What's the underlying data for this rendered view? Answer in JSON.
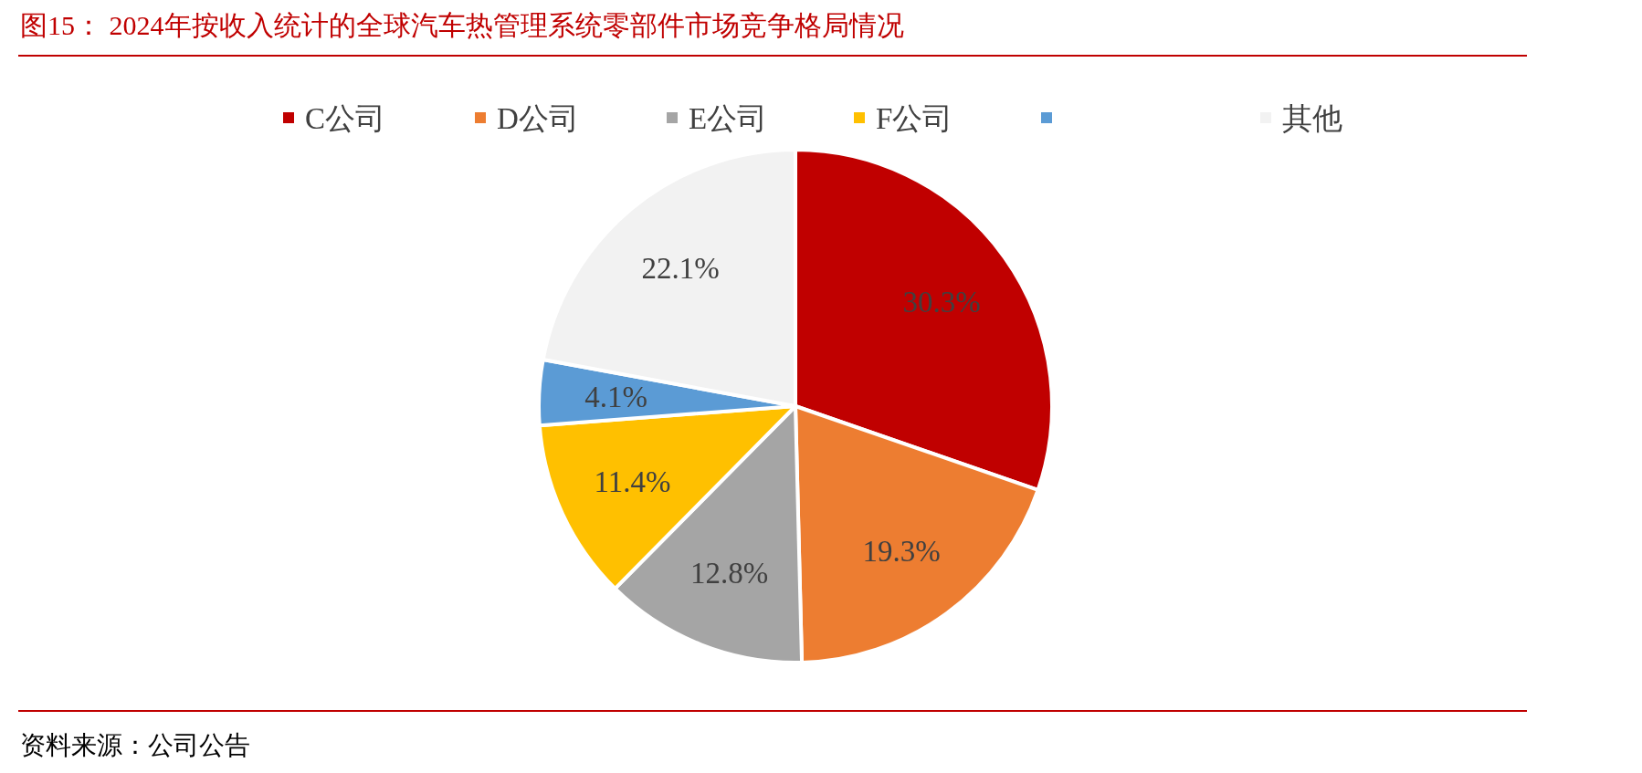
{
  "chart_data": {
    "type": "pie",
    "title": "图15：  2024年按收入统计的全球汽车热管理系统零部件市场竞争格局情况",
    "categories": [
      "C公司",
      "D公司",
      "E公司",
      "F公司",
      null,
      "其他"
    ],
    "values": [
      30.3,
      19.3,
      12.8,
      11.4,
      4.1,
      22.1
    ],
    "value_labels": [
      "30.3%",
      "19.3%",
      "12.8%",
      "11.4%",
      "4.1%",
      "22.1%"
    ],
    "colors": [
      "#c00000",
      "#ed7d31",
      "#a5a5a5",
      "#ffc000",
      "#5b9bd5",
      "#f2f2f2"
    ],
    "legend": "top",
    "annotations": [
      "资料来源：公司公告"
    ]
  }
}
